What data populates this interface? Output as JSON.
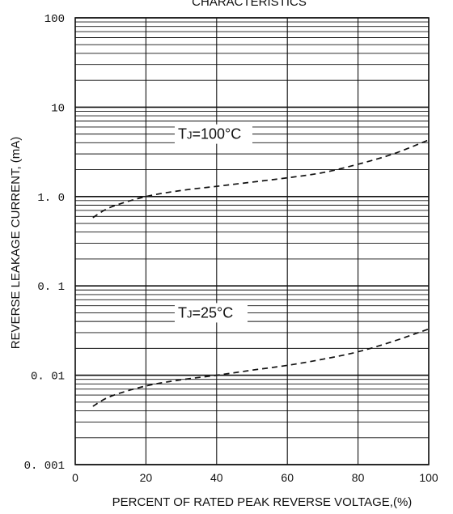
{
  "chart_data": {
    "type": "line",
    "title": "CHARACTERISTICS",
    "xlabel": "PERCENT OF RATED PEAK REVERSE VOLTAGE,(%)",
    "ylabel": "REVERSE LEAKAGE CURRENT, (mA)",
    "xlim": [
      0,
      100
    ],
    "ylim": [
      0.001,
      100
    ],
    "yscale": "log",
    "grid": true,
    "x_ticks": [
      "0",
      "20",
      "40",
      "60",
      "80",
      "100"
    ],
    "y_ticks": [
      "100",
      "10",
      "1. 0",
      "0. 1",
      "0. 01",
      "0. 001"
    ],
    "series": [
      {
        "name": "TJ=100°C",
        "line_style": "dashed",
        "x": [
          5,
          10,
          20,
          30,
          40,
          50,
          60,
          70,
          80,
          90,
          100
        ],
        "y": [
          0.58,
          0.76,
          1.0,
          1.17,
          1.3,
          1.45,
          1.62,
          1.85,
          2.3,
          3.0,
          4.3
        ]
      },
      {
        "name": "TJ=25°C",
        "line_style": "dashed",
        "x": [
          5,
          10,
          20,
          30,
          40,
          50,
          60,
          70,
          80,
          90,
          100
        ],
        "y": [
          0.0045,
          0.0058,
          0.0076,
          0.0089,
          0.01,
          0.0114,
          0.0129,
          0.0151,
          0.0183,
          0.024,
          0.033
        ]
      }
    ],
    "annotations": [
      {
        "text_main": "T",
        "text_sub": "J",
        "text_rest": "=100°C"
      },
      {
        "text_main": "T",
        "text_sub": "J",
        "text_rest": "=25°C"
      }
    ]
  },
  "colors": {
    "background": "#ffffff",
    "ink": "#111111"
  }
}
